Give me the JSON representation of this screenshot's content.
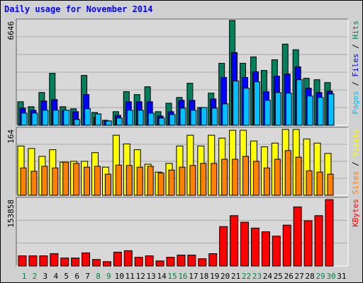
{
  "chart_data": {
    "type": "bar",
    "title": "Daily usage for November 2014",
    "background": "#d0d0d0",
    "panel_color": "#d8d8d8",
    "grid_color": "#a8a8a8",
    "categories": [
      "1",
      "2",
      "3",
      "4",
      "5",
      "6",
      "7",
      "8",
      "9",
      "10",
      "11",
      "12",
      "13",
      "14",
      "15",
      "16",
      "17",
      "18",
      "19",
      "20",
      "21",
      "22",
      "23",
      "24",
      "25",
      "26",
      "27",
      "28",
      "29",
      "30",
      "31"
    ],
    "category_colors": [
      "#008040",
      "#008040",
      "#000000",
      "#000000",
      "#000000",
      "#000000",
      "#000000",
      "#008040",
      "#008040",
      "#000000",
      "#000000",
      "#000000",
      "#000000",
      "#000000",
      "#008040",
      "#008040",
      "#000000",
      "#000000",
      "#000000",
      "#000000",
      "#000000",
      "#008040",
      "#008040",
      "#000000",
      "#000000",
      "#000000",
      "#000000",
      "#000000",
      "#008040",
      "#008040",
      "#000000"
    ],
    "legend_separator": " / ",
    "panels": [
      {
        "ylim": [
          0,
          6646
        ],
        "yticks": [
          6646
        ],
        "grid_lines": 6,
        "series": [
          {
            "name": "Hits",
            "color": "#00805c",
            "values": [
              1470,
              1160,
              2050,
              3250,
              1160,
              1030,
              3120,
              800,
              310,
              850,
              2100,
              1920,
              2410,
              850,
              1380,
              1740,
              2630,
              1110,
              2010,
              3880,
              6560,
              3880,
              4280,
              3430,
              4100,
              5080,
              4730,
              2940,
              2850,
              2670,
              0
            ]
          },
          {
            "name": "Files",
            "color": "#0000ff",
            "values": [
              1070,
              940,
              1520,
              1610,
              940,
              850,
              1920,
              490,
              270,
              620,
              1470,
              1470,
              1470,
              580,
              850,
              1560,
              1560,
              1110,
              1650,
              2990,
              4550,
              2990,
              3350,
              2100,
              3080,
              3210,
              3660,
              2320,
              2050,
              2140,
              0
            ]
          },
          {
            "name": "Pages",
            "color": "#00c0ff",
            "values": [
              760,
              760,
              940,
              940,
              940,
              360,
              1030,
              710,
              270,
              450,
              940,
              940,
              760,
              450,
              670,
              1070,
              940,
              1110,
              1070,
              1340,
              2770,
              2320,
              2720,
              1560,
              2050,
              2010,
              2850,
              1830,
              1740,
              1960,
              0
            ]
          }
        ]
      },
      {
        "ylim": [
          0,
          164
        ],
        "yticks": [
          164
        ],
        "grid_lines": 4,
        "series": [
          {
            "name": "Visits",
            "color": "#ffff00",
            "values": [
              119,
              113,
              94,
              110,
              80,
              82,
              82,
              103,
              68,
              145,
              124,
              110,
              75,
              56,
              77,
              119,
              145,
              119,
              145,
              138,
              157,
              157,
              131,
              117,
              126,
              159,
              159,
              136,
              126,
              101,
              0
            ]
          },
          {
            "name": "Sites",
            "color": "#ff8000",
            "values": [
              66,
              58,
              70,
              66,
              80,
              77,
              68,
              70,
              51,
              73,
              72,
              68,
              70,
              54,
              61,
              68,
              72,
              77,
              77,
              87,
              87,
              94,
              82,
              66,
              87,
              108,
              92,
              59,
              56,
              51,
              0
            ]
          }
        ]
      },
      {
        "ylim": [
          0,
          153858
        ],
        "yticks": [
          153858
        ],
        "grid_lines": 3,
        "series": [
          {
            "name": "KBytes",
            "color": "#ff0000",
            "values": [
              22900,
              22900,
              22900,
              27800,
              18000,
              18000,
              29500,
              14700,
              9800,
              31100,
              34400,
              19600,
              22900,
              11500,
              19600,
              24600,
              24600,
              16400,
              27800,
              88400,
              113000,
              98200,
              85100,
              76900,
              67100,
              91700,
              132600,
              101500,
              113000,
              149000,
              0
            ]
          }
        ]
      }
    ]
  }
}
